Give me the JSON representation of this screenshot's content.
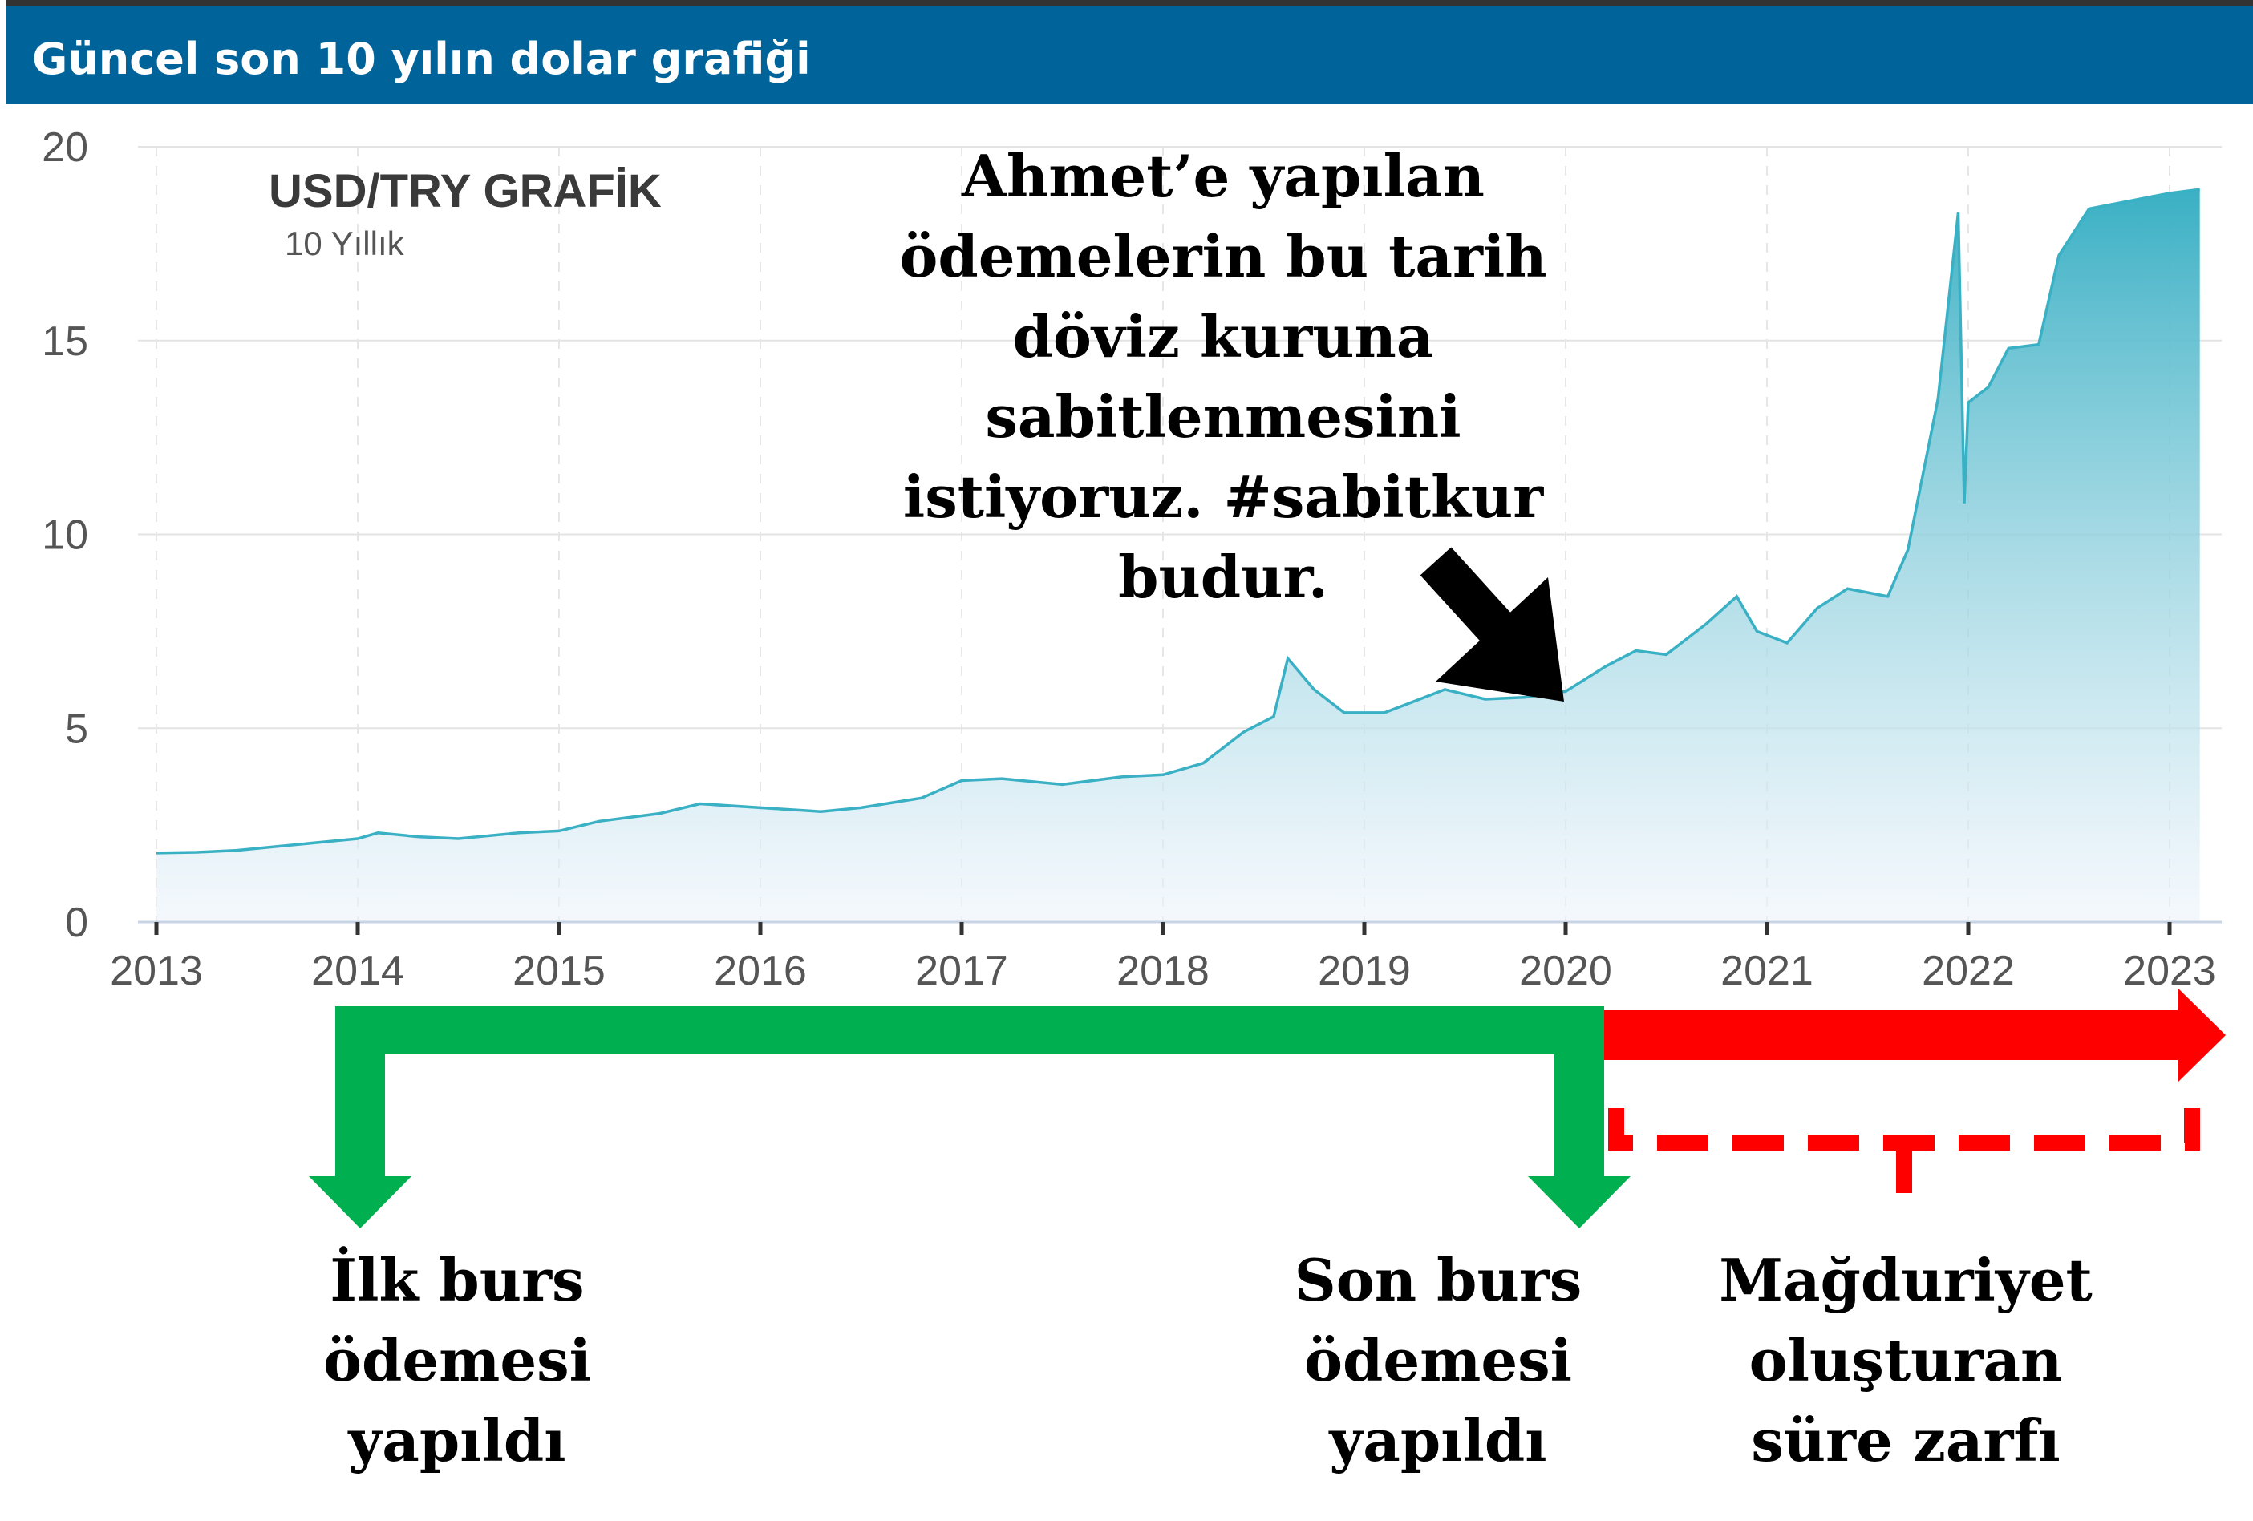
{
  "header": {
    "title": "Güncel son 10 yılın dolar grafiği",
    "background": "#00649a"
  },
  "chart_data": {
    "type": "area",
    "title": "USD/TRY GRAFİK",
    "subtitle": "10 Yıllık",
    "xlabel": "",
    "ylabel": "",
    "xlim": [
      2013,
      2023.3
    ],
    "ylim": [
      0,
      20
    ],
    "x_ticks": [
      "2013",
      "2014",
      "2015",
      "2016",
      "2017",
      "2018",
      "2019",
      "2020",
      "2021",
      "2022",
      "2023"
    ],
    "y_ticks": [
      "0",
      "5",
      "10",
      "15",
      "20"
    ],
    "grid": true,
    "line_color": "#3ab0c4",
    "series": [
      {
        "x": [
          2013.0,
          2013.2,
          2013.4,
          2013.6,
          2013.8,
          2014.0,
          2014.1,
          2014.3,
          2014.5,
          2014.8,
          2015.0,
          2015.2,
          2015.5,
          2015.7,
          2016.0,
          2016.3,
          2016.5,
          2016.8,
          2017.0,
          2017.2,
          2017.5,
          2017.8,
          2018.0,
          2018.2,
          2018.4,
          2018.55,
          2018.62,
          2018.75,
          2018.9,
          2019.1,
          2019.3,
          2019.4,
          2019.6,
          2019.8,
          2020.0,
          2020.2,
          2020.35,
          2020.5,
          2020.7,
          2020.85,
          2020.95,
          2021.1,
          2021.25,
          2021.4,
          2021.5,
          2021.6,
          2021.7,
          2021.85,
          2021.95,
          2021.98,
          2022.0,
          2022.1,
          2022.2,
          2022.35,
          2022.45,
          2022.6,
          2022.8,
          2023.0,
          2023.15
        ],
        "y": [
          1.78,
          1.8,
          1.85,
          1.95,
          2.05,
          2.15,
          2.3,
          2.2,
          2.15,
          2.3,
          2.35,
          2.6,
          2.8,
          3.05,
          2.95,
          2.85,
          2.95,
          3.2,
          3.65,
          3.7,
          3.55,
          3.75,
          3.8,
          4.1,
          4.9,
          5.3,
          6.8,
          6.0,
          5.4,
          5.4,
          5.8,
          6.0,
          5.75,
          5.8,
          5.95,
          6.6,
          7.0,
          6.9,
          7.7,
          8.4,
          7.5,
          7.2,
          8.1,
          8.6,
          8.5,
          8.4,
          9.6,
          13.5,
          18.3,
          10.8,
          13.4,
          13.8,
          14.8,
          14.9,
          17.2,
          18.4,
          18.6,
          18.8,
          18.9
        ]
      }
    ]
  },
  "annotation": {
    "lines": [
      "Ahmet’e yapılan",
      "ödemelerin bu tarih",
      "döviz kuruna",
      "sabitlenmesini",
      "istiyoruz. #sabitkur",
      "budur."
    ]
  },
  "labels": {
    "first_payment": [
      "İlk burs",
      "ödemesi",
      "yapıldı"
    ],
    "last_payment": [
      "Son burs",
      "ödemesi",
      "yapıldı"
    ],
    "damage_period": [
      "Mağduriyet",
      "oluşturan",
      "süre zarfı"
    ]
  },
  "colors": {
    "green_bracket": "#00b050",
    "red_arrow": "#ff0000",
    "black_arrow": "#000000"
  }
}
